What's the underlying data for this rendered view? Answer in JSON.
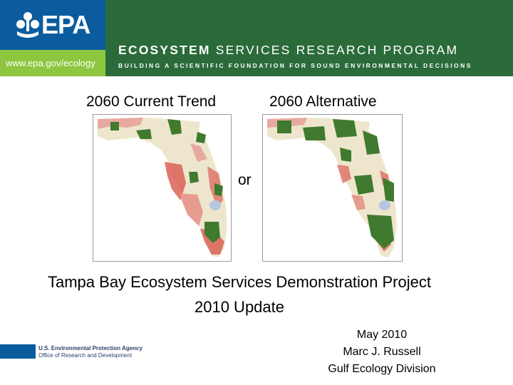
{
  "header": {
    "logo_text": "EPA",
    "url": "www.epa.gov/ecology",
    "program_bold": "ECOSYSTEM",
    "program_rest": " SERVICES RESEARCH PROGRAM",
    "program_sub": "BUILDING A SCIENTIFIC FOUNDATION FOR SOUND ENVIRONMENTAL DECISIONS",
    "colors": {
      "header_green": "#2b6b3a",
      "logo_blue": "#0b5c9e",
      "url_green": "#8dc63f"
    }
  },
  "maps": {
    "left_label": "2060 Current Trend",
    "right_label": "2060 Alternative",
    "connector": "or"
  },
  "project": {
    "title_line1": "Tampa Bay Ecosystem Services Demonstration Project",
    "title_line2": "2010 Update"
  },
  "author": {
    "date": "May 2010",
    "name": "Marc J. Russell",
    "division": "Gulf Ecology Division"
  },
  "footer": {
    "agency_line1": "U.S. Environmental Protection Agency",
    "agency_line2": "Office of Research and Development"
  }
}
